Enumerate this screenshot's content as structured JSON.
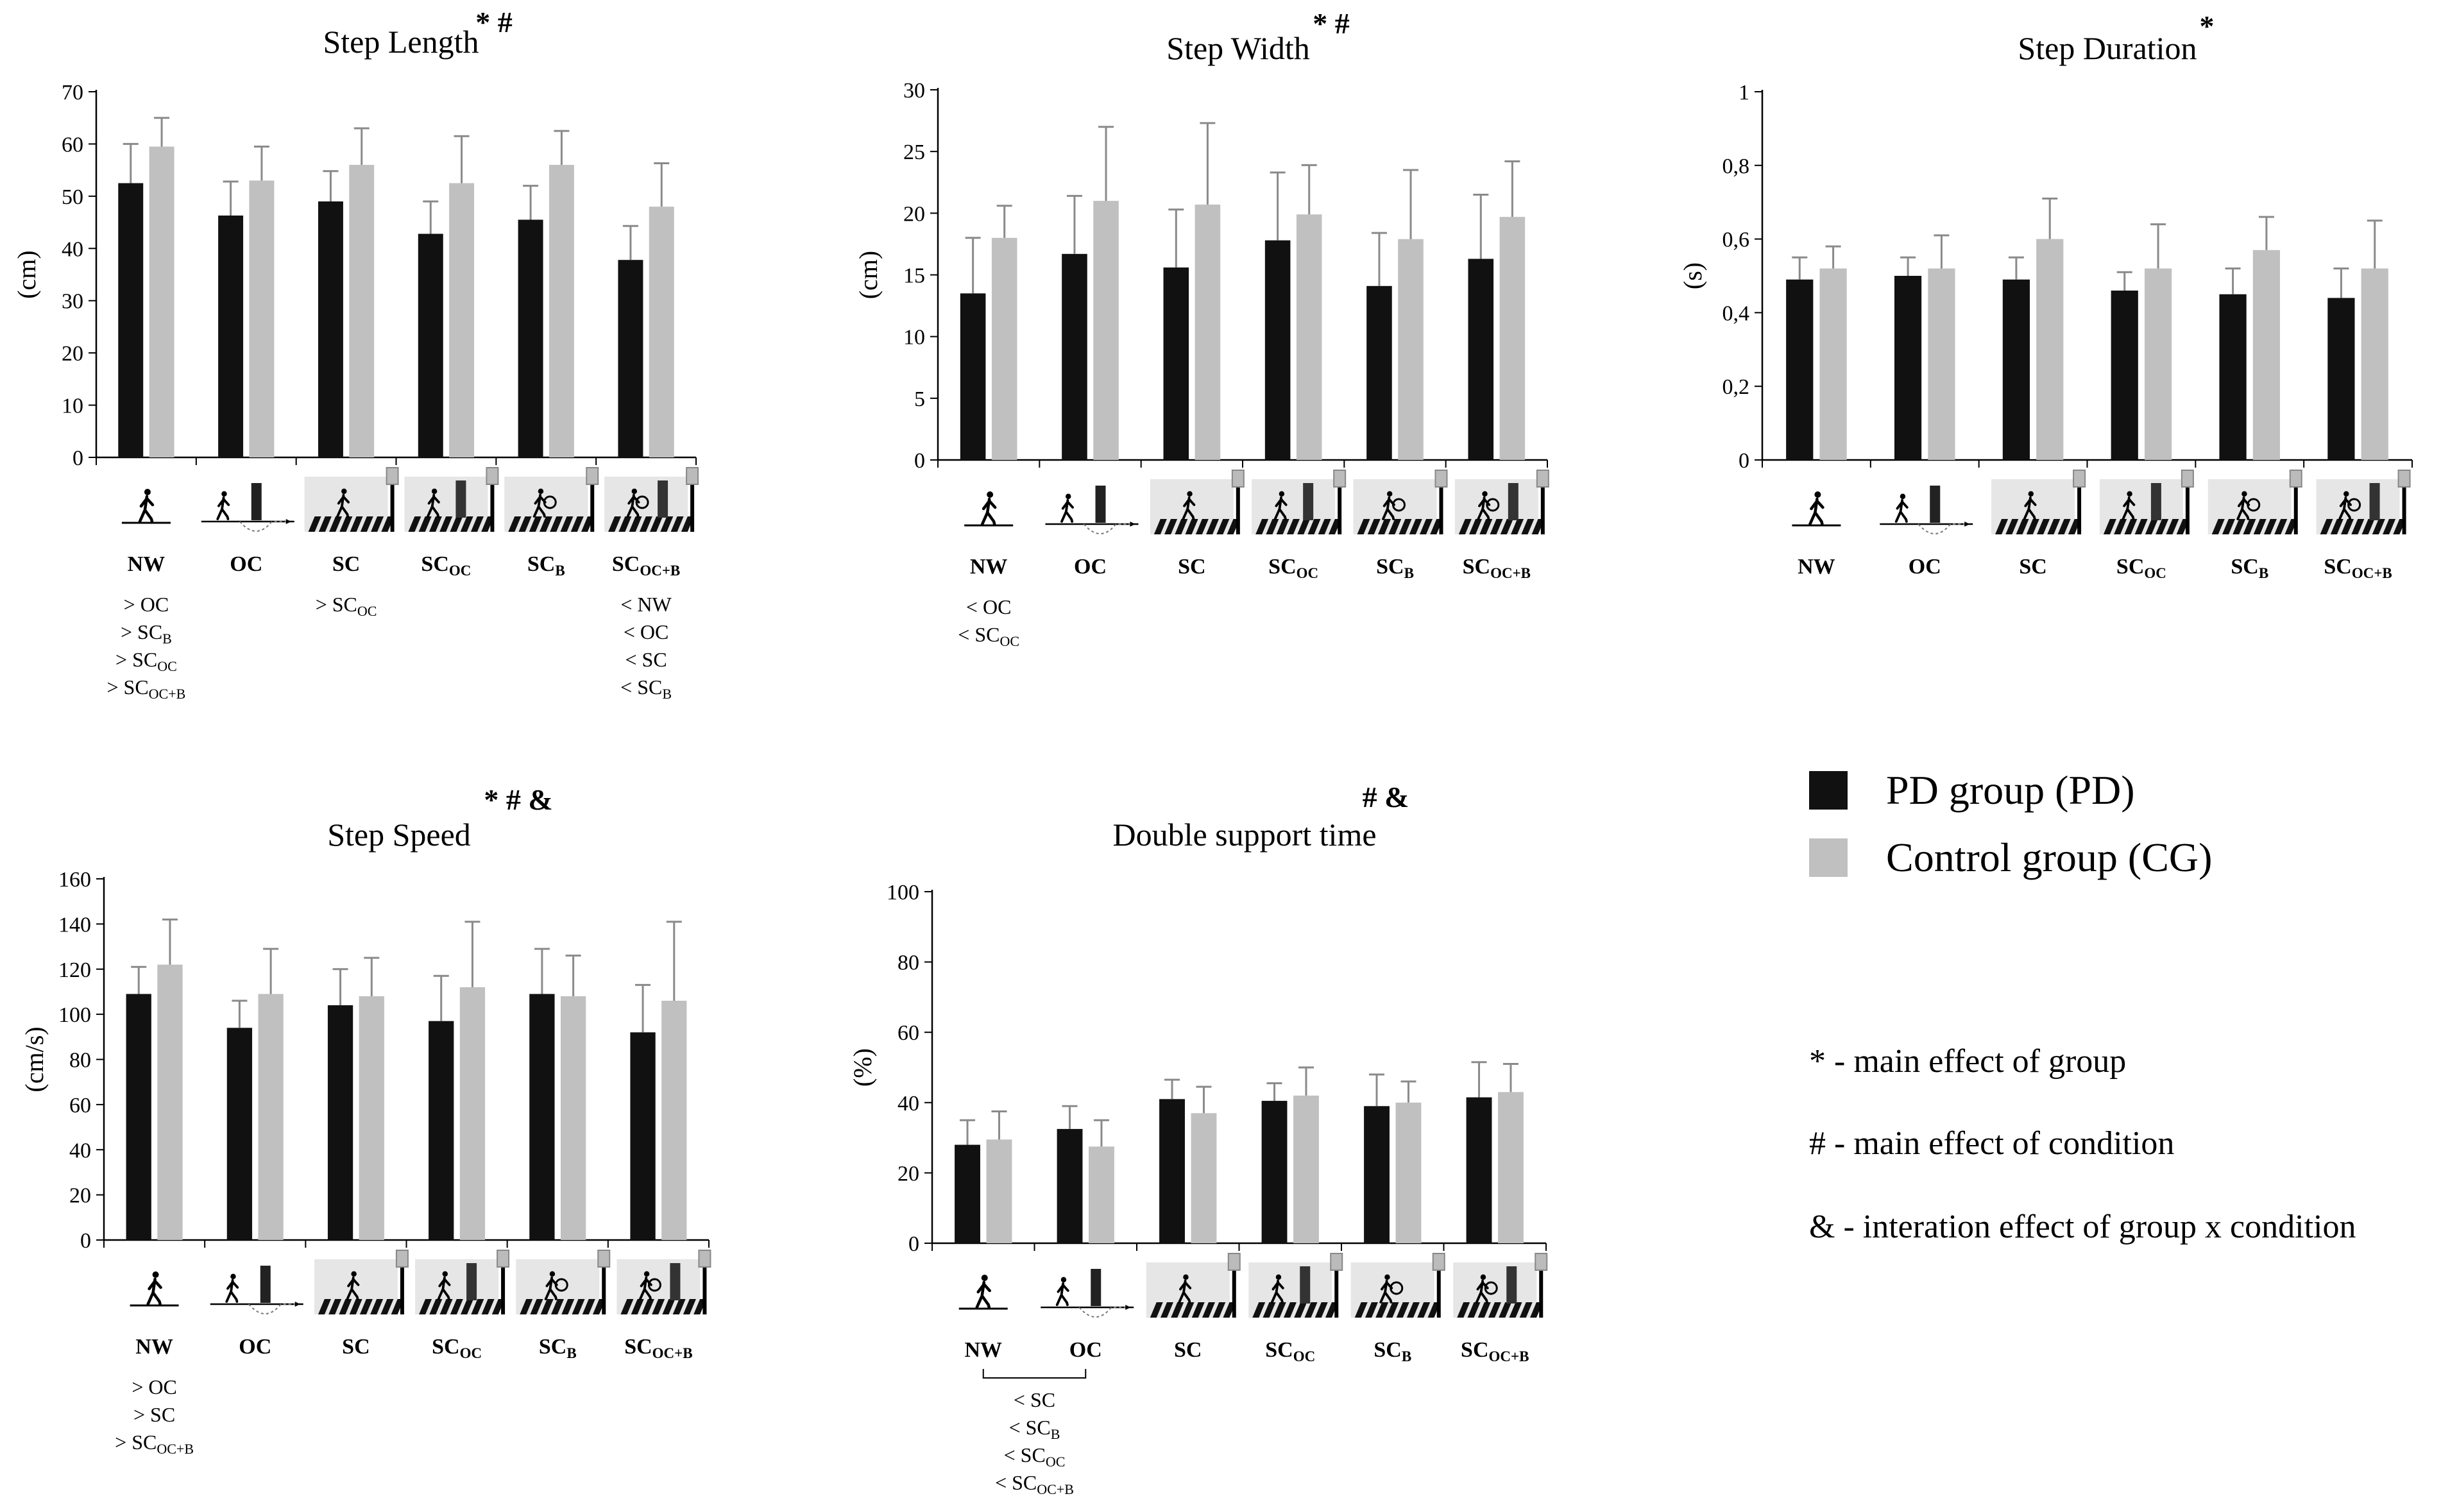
{
  "colors": {
    "pd": "#111111",
    "cg": "#c0c0c0",
    "axis": "#000000",
    "error": "#8a8a8a"
  },
  "conditions": [
    {
      "base": "NW",
      "sub": "",
      "icon": "walking-person-icon"
    },
    {
      "base": "OC",
      "sub": "",
      "icon": "obstacle-crossing-icon"
    },
    {
      "base": "SC",
      "sub": "",
      "icon": "street-crossing-icon"
    },
    {
      "base": "SC",
      "sub": "OC",
      "icon": "street-crossing-obstacle-icon"
    },
    {
      "base": "SC",
      "sub": "B",
      "icon": "street-crossing-bag-icon"
    },
    {
      "base": "SC",
      "sub": "OC+B",
      "icon": "street-crossing-obstacle-bag-icon"
    }
  ],
  "legend": {
    "pd_label": "PD group (PD)",
    "cg_label": "Control group (CG)",
    "notes": [
      {
        "symbol": "*",
        "text": "- main effect of group"
      },
      {
        "symbol": "#",
        "text": "- main effect of condition"
      },
      {
        "symbol": "&",
        "text": "- interation effect of group x condition"
      }
    ]
  },
  "chart_data": [
    {
      "type": "bar",
      "title": "Step Length",
      "marks": "* #",
      "ylabel": "(cm)",
      "ylim": [
        0,
        70
      ],
      "yticks": [
        "0",
        "10",
        "20",
        "30",
        "40",
        "50",
        "60",
        "70"
      ],
      "series": [
        {
          "name": "PD group (PD)",
          "values": [
            52.5,
            46.3,
            49.0,
            42.8,
            45.5,
            37.8
          ],
          "errors": [
            7.5,
            6.5,
            5.8,
            6.2,
            6.5,
            6.5
          ]
        },
        {
          "name": "Control group (CG)",
          "values": [
            59.5,
            53.0,
            56.0,
            52.5,
            56.0,
            48.0
          ],
          "errors": [
            5.5,
            6.5,
            7.0,
            9.0,
            6.5,
            8.3
          ]
        }
      ],
      "annotations": [
        {
          "condition": 0,
          "lines": [
            [
              "> OC",
              ""
            ],
            [
              "> SC",
              "B"
            ],
            [
              "> SC",
              "OC"
            ],
            [
              "> SC",
              "OC+B"
            ]
          ]
        },
        {
          "condition": 2,
          "lines": [
            [
              "> SC",
              "OC"
            ]
          ]
        },
        {
          "condition": 5,
          "lines": [
            [
              "< NW",
              ""
            ],
            [
              "< OC",
              ""
            ],
            [
              "< SC",
              ""
            ],
            [
              "< SC",
              "B"
            ]
          ]
        }
      ]
    },
    {
      "type": "bar",
      "title": "Step Width",
      "marks": "* #",
      "ylabel": "(cm)",
      "ylim": [
        0,
        30
      ],
      "yticks": [
        "0",
        "5",
        "10",
        "15",
        "20",
        "25",
        "30"
      ],
      "series": [
        {
          "name": "PD group (PD)",
          "values": [
            13.5,
            16.7,
            15.6,
            17.8,
            14.1,
            16.3
          ],
          "errors": [
            4.5,
            4.7,
            4.7,
            5.5,
            4.3,
            5.2
          ]
        },
        {
          "name": "Control group (CG)",
          "values": [
            18.0,
            21.0,
            20.7,
            19.9,
            17.9,
            19.7
          ],
          "errors": [
            2.6,
            6.0,
            6.6,
            4.0,
            5.6,
            4.5
          ]
        }
      ],
      "annotations": [
        {
          "condition": 0,
          "lines": [
            [
              "< OC",
              ""
            ],
            [
              "< SC",
              "OC"
            ]
          ]
        }
      ]
    },
    {
      "type": "bar",
      "title": "Step Duration",
      "marks": "*",
      "ylabel": "(s)",
      "ylim": [
        0,
        1
      ],
      "yticks": [
        "0",
        "0,2",
        "0,4",
        "0,6",
        "0,8",
        "1"
      ],
      "series": [
        {
          "name": "PD group (PD)",
          "values": [
            0.49,
            0.5,
            0.49,
            0.46,
            0.45,
            0.44
          ],
          "errors": [
            0.06,
            0.05,
            0.06,
            0.05,
            0.07,
            0.08
          ]
        },
        {
          "name": "Control group (CG)",
          "values": [
            0.52,
            0.52,
            0.6,
            0.52,
            0.57,
            0.52
          ],
          "errors": [
            0.06,
            0.09,
            0.11,
            0.12,
            0.09,
            0.13
          ]
        }
      ],
      "annotations": []
    },
    {
      "type": "bar",
      "title": "Step Speed",
      "marks": "* # &",
      "ylabel": "(cm/s)",
      "ylim": [
        0,
        160
      ],
      "yticks": [
        "0",
        "20",
        "40",
        "60",
        "80",
        "100",
        "120",
        "140",
        "160"
      ],
      "series": [
        {
          "name": "PD group (PD)",
          "values": [
            109,
            94,
            104,
            97,
            109,
            92
          ],
          "errors": [
            12,
            12,
            16,
            20,
            20,
            21
          ]
        },
        {
          "name": "Control group (CG)",
          "values": [
            122,
            109,
            108,
            112,
            108,
            106
          ],
          "errors": [
            20,
            20,
            17,
            29,
            18,
            35
          ]
        }
      ],
      "annotations": [
        {
          "condition": 0,
          "lines": [
            [
              "> OC",
              ""
            ],
            [
              "> SC",
              ""
            ],
            [
              "> SC",
              "OC+B"
            ]
          ]
        }
      ]
    },
    {
      "type": "bar",
      "title": "Double support time",
      "marks": "# &",
      "ylabel": "(%)",
      "ylim": [
        0,
        100
      ],
      "yticks": [
        "0",
        "20",
        "40",
        "60",
        "80",
        "100"
      ],
      "series": [
        {
          "name": "PD group (PD)",
          "values": [
            28,
            32.5,
            41,
            40.5,
            39,
            41.5
          ],
          "errors": [
            7,
            6.5,
            5.5,
            5,
            9,
            10
          ]
        },
        {
          "name": "Control group (CG)",
          "values": [
            29.5,
            27.5,
            37,
            42,
            40,
            43
          ],
          "errors": [
            8,
            7.5,
            7.5,
            8,
            6,
            8
          ]
        }
      ],
      "annotations": [
        {
          "condition": 0,
          "span": 2,
          "lines": [
            [
              "< SC",
              ""
            ],
            [
              "< SC",
              "B"
            ],
            [
              "< SC",
              "OC"
            ],
            [
              "< SC",
              "OC+B"
            ]
          ]
        }
      ]
    }
  ]
}
